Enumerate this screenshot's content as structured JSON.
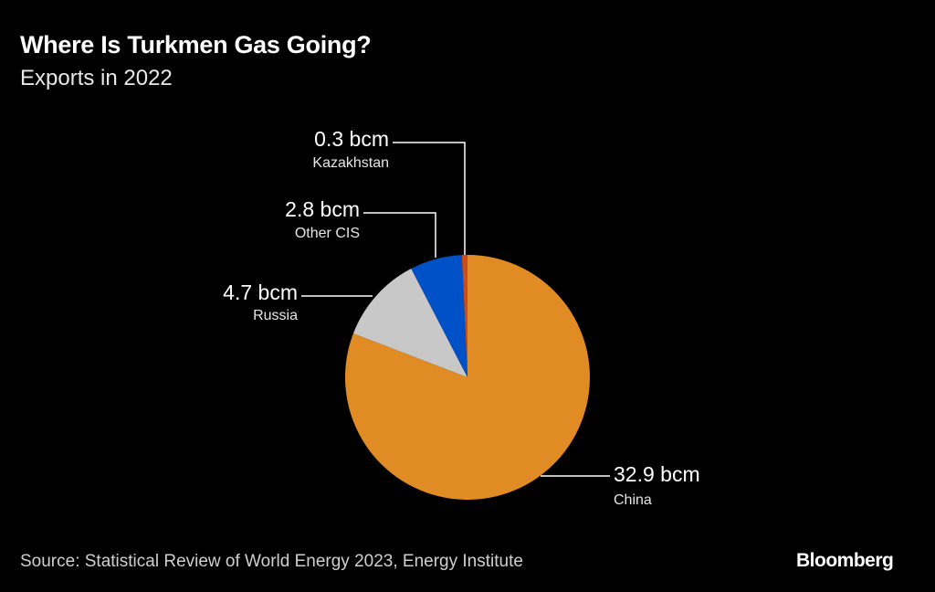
{
  "header": {
    "title": "Where Is Turkmen Gas Going?",
    "subtitle": "Exports in 2022"
  },
  "chart_data": {
    "type": "pie",
    "title": "Where Is Turkmen Gas Going?",
    "subtitle": "Exports in 2022",
    "unit": "bcm",
    "slices": [
      {
        "label": "China",
        "value": 32.9,
        "value_label": "32.9 bcm",
        "color": "#e08b23"
      },
      {
        "label": "Russia",
        "value": 4.7,
        "value_label": "4.7 bcm",
        "color": "#c8c8c8"
      },
      {
        "label": "Other CIS",
        "value": 2.8,
        "value_label": "2.8 bcm",
        "color": "#0050c8"
      },
      {
        "label": "Kazakhstan",
        "value": 0.3,
        "value_label": "0.3 bcm",
        "color": "#cc4b1e"
      }
    ]
  },
  "footer": {
    "source": "Source: Statistical Review of World Energy 2023, Energy Institute",
    "brand": "Bloomberg"
  }
}
